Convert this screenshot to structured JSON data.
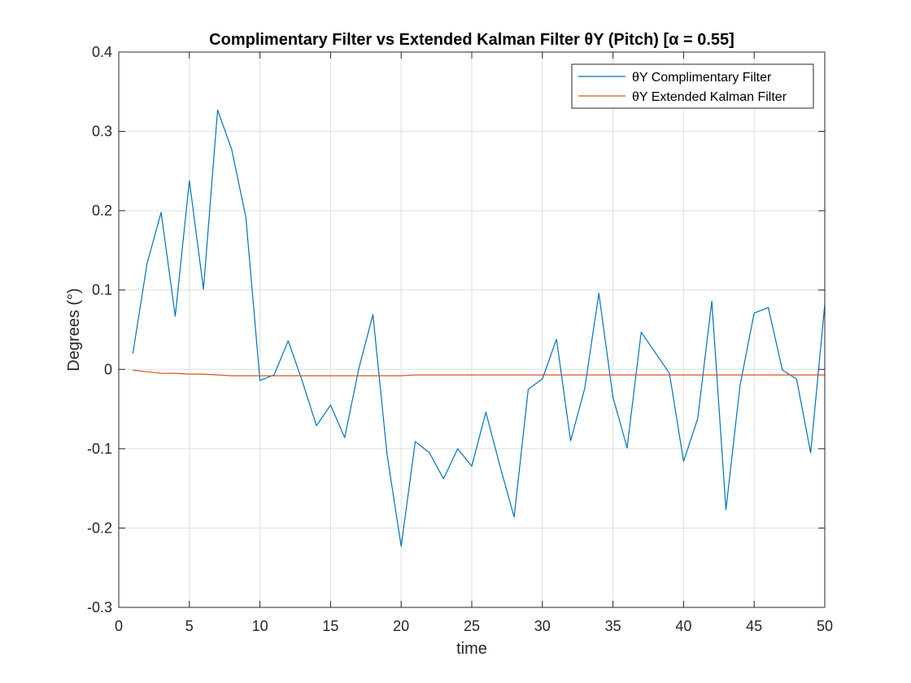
{
  "chart_data": {
    "type": "line",
    "title": "Complimentary Filter vs Extended Kalman Filter θY (Pitch) [α = 0.55]",
    "xlabel": "time",
    "ylabel": "Degrees (°)",
    "xlim": [
      0,
      50
    ],
    "ylim": [
      -0.3,
      0.4
    ],
    "xticks": [
      0,
      5,
      10,
      15,
      20,
      25,
      30,
      35,
      40,
      45,
      50
    ],
    "xtick_labels": [
      "0",
      "5",
      "10",
      "15",
      "20",
      "25",
      "30",
      "35",
      "40",
      "45",
      "50"
    ],
    "yticks": [
      -0.3,
      -0.2,
      -0.1,
      0,
      0.1,
      0.2,
      0.3,
      0.4
    ],
    "ytick_labels": [
      "-0.3",
      "-0.2",
      "-0.1",
      "0",
      "0.1",
      "0.2",
      "0.3",
      "0.4"
    ],
    "grid": true,
    "legend_position": "top-right",
    "x": [
      1,
      2,
      3,
      4,
      5,
      6,
      7,
      8,
      9,
      10,
      11,
      12,
      13,
      14,
      15,
      16,
      17,
      18,
      19,
      20,
      21,
      22,
      23,
      24,
      25,
      26,
      27,
      28,
      29,
      30,
      31,
      32,
      33,
      34,
      35,
      36,
      37,
      38,
      39,
      40,
      41,
      42,
      43,
      44,
      45,
      46,
      47,
      48,
      49,
      50
    ],
    "series": [
      {
        "name": "θY Complimentary Filter",
        "color": "#0072BD",
        "values": [
          0.02,
          0.133,
          0.198,
          0.067,
          0.238,
          0.101,
          0.327,
          0.277,
          0.192,
          -0.014,
          -0.007,
          0.036,
          -0.015,
          -0.071,
          -0.045,
          -0.086,
          0.001,
          0.069,
          -0.107,
          -0.223,
          -0.091,
          -0.105,
          -0.138,
          -0.1,
          -0.122,
          -0.054,
          -0.122,
          -0.186,
          -0.025,
          -0.012,
          0.038,
          -0.09,
          -0.024,
          0.096,
          -0.035,
          -0.099,
          0.047,
          0.021,
          -0.005,
          -0.116,
          -0.062,
          0.086,
          -0.177,
          -0.02,
          0.071,
          0.078,
          -0.001,
          -0.012,
          -0.105,
          0.082
        ]
      },
      {
        "name": "θY Extended Kalman Filter",
        "color": "#D95319",
        "values": [
          -0.001,
          -0.003,
          -0.005,
          -0.005,
          -0.006,
          -0.006,
          -0.007,
          -0.008,
          -0.008,
          -0.008,
          -0.008,
          -0.008,
          -0.008,
          -0.008,
          -0.008,
          -0.008,
          -0.008,
          -0.008,
          -0.008,
          -0.008,
          -0.007,
          -0.007,
          -0.007,
          -0.007,
          -0.007,
          -0.007,
          -0.007,
          -0.007,
          -0.007,
          -0.007,
          -0.007,
          -0.007,
          -0.007,
          -0.007,
          -0.007,
          -0.007,
          -0.007,
          -0.007,
          -0.007,
          -0.007,
          -0.007,
          -0.007,
          -0.007,
          -0.007,
          -0.007,
          -0.007,
          -0.007,
          -0.007,
          -0.007,
          -0.007
        ]
      }
    ]
  }
}
